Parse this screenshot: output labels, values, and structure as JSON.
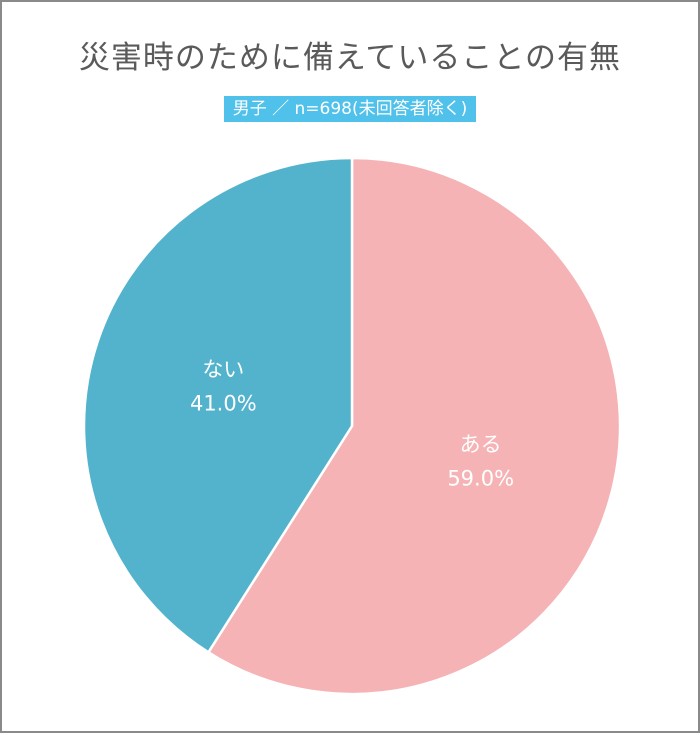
{
  "chart_data": {
    "type": "pie",
    "title": "災害時のために備えていることの有無",
    "subtitle": "男子 ／ n=698(未回答者除く)",
    "slices": [
      {
        "label": "ある",
        "value": 59.0,
        "value_label": "59.0%",
        "color": "#f5b3b5"
      },
      {
        "label": "ない",
        "value": 41.0,
        "value_label": "41.0%",
        "color": "#53b3cc"
      }
    ],
    "start": "12 o'clock",
    "direction": "clockwise",
    "legend": "none"
  }
}
